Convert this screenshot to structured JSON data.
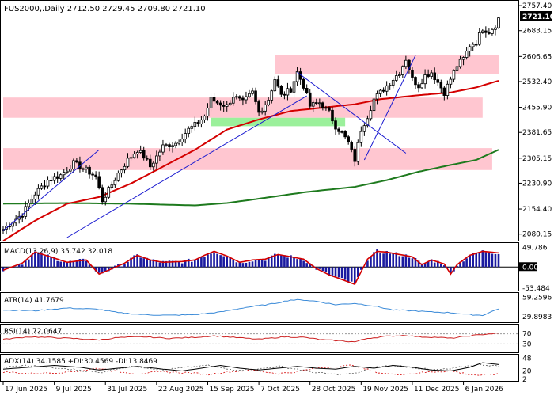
{
  "chart_data": {
    "type": "candlestick",
    "symbol": "FUS2000",
    "timeframe": "Daily",
    "ohlc_header": "FUS2000,.Daily  2712.50 2729.45 2709.80 2721.10",
    "last_price": "2721.10",
    "price_ticks": [
      "2757.40",
      "2683.15",
      "2606.65",
      "2532.40",
      "2455.90",
      "2381.65",
      "2305.15",
      "2230.90",
      "2154.40",
      "2080.15"
    ],
    "price_ylim": [
      2070,
      2760
    ],
    "x_labels": [
      "17 Jun 2025",
      "9 Jul 2025",
      "31 Jul 2025",
      "22 Aug 2025",
      "15 Sep 2025",
      "7 Oct 2025",
      "28 Oct 2025",
      "19 Nov 2025",
      "11 Dec 2025",
      "6 Jan 2026"
    ],
    "x_label_index": [
      0,
      16,
      32,
      48,
      64,
      80,
      96,
      112,
      128,
      144
    ],
    "candle_count": 156,
    "close_waypoints": [
      [
        0,
        2095
      ],
      [
        6,
        2140
      ],
      [
        10,
        2200
      ],
      [
        14,
        2240
      ],
      [
        18,
        2255
      ],
      [
        22,
        2290
      ],
      [
        26,
        2270
      ],
      [
        29,
        2250
      ],
      [
        31,
        2180
      ],
      [
        33,
        2210
      ],
      [
        36,
        2260
      ],
      [
        39,
        2300
      ],
      [
        42,
        2330
      ],
      [
        44,
        2310
      ],
      [
        46,
        2280
      ],
      [
        50,
        2340
      ],
      [
        54,
        2350
      ],
      [
        58,
        2390
      ],
      [
        61,
        2410
      ],
      [
        63,
        2430
      ],
      [
        65,
        2480
      ],
      [
        67,
        2470
      ],
      [
        70,
        2460
      ],
      [
        72,
        2490
      ],
      [
        75,
        2470
      ],
      [
        78,
        2500
      ],
      [
        80,
        2440
      ],
      [
        83,
        2480
      ],
      [
        85,
        2540
      ],
      [
        87,
        2490
      ],
      [
        90,
        2510
      ],
      [
        92,
        2560
      ],
      [
        94,
        2520
      ],
      [
        96,
        2460
      ],
      [
        99,
        2470
      ],
      [
        102,
        2440
      ],
      [
        104,
        2400
      ],
      [
        106,
        2380
      ],
      [
        108,
        2350
      ],
      [
        110,
        2300
      ],
      [
        112,
        2390
      ],
      [
        114,
        2430
      ],
      [
        116,
        2480
      ],
      [
        118,
        2500
      ],
      [
        120,
        2520
      ],
      [
        122,
        2540
      ],
      [
        124,
        2560
      ],
      [
        126,
        2600
      ],
      [
        128,
        2540
      ],
      [
        130,
        2520
      ],
      [
        132,
        2550
      ],
      [
        134,
        2560
      ],
      [
        136,
        2530
      ],
      [
        138,
        2500
      ],
      [
        140,
        2540
      ],
      [
        142,
        2580
      ],
      [
        144,
        2600
      ],
      [
        146,
        2640
      ],
      [
        148,
        2650
      ],
      [
        150,
        2690
      ],
      [
        152,
        2680
      ],
      [
        154,
        2700
      ],
      [
        155,
        2721.1
      ]
    ],
    "ma_red": [
      [
        0,
        2060
      ],
      [
        10,
        2120
      ],
      [
        20,
        2170
      ],
      [
        30,
        2190
      ],
      [
        40,
        2230
      ],
      [
        50,
        2280
      ],
      [
        60,
        2330
      ],
      [
        70,
        2390
      ],
      [
        80,
        2420
      ],
      [
        90,
        2445
      ],
      [
        100,
        2455
      ],
      [
        110,
        2465
      ],
      [
        118,
        2480
      ],
      [
        130,
        2492
      ],
      [
        140,
        2500
      ],
      [
        148,
        2515
      ],
      [
        155,
        2535
      ]
    ],
    "ma_green": [
      [
        0,
        2170
      ],
      [
        20,
        2172
      ],
      [
        40,
        2170
      ],
      [
        60,
        2165
      ],
      [
        70,
        2172
      ],
      [
        80,
        2185
      ],
      [
        95,
        2205
      ],
      [
        110,
        2220
      ],
      [
        120,
        2240
      ],
      [
        130,
        2265
      ],
      [
        140,
        2285
      ],
      [
        148,
        2300
      ],
      [
        155,
        2330
      ]
    ],
    "support_resistance_zones": [
      {
        "from": 2555,
        "to": 2610,
        "x_from": 85,
        "x_to": 155,
        "color": "#ffc0cb"
      },
      {
        "from": 2425,
        "to": 2485,
        "x_from": 0,
        "x_to": 150,
        "color": "#ffc0cb"
      },
      {
        "from": 2400,
        "to": 2425,
        "x_from": 65,
        "x_to": 107,
        "color": "#90ee90"
      },
      {
        "from": 2270,
        "to": 2335,
        "x_from": 0,
        "x_to": 153,
        "color": "#ffc0cb"
      }
    ],
    "trendlines": [
      {
        "points": [
          [
            0,
            2090
          ],
          [
            30,
            2330
          ]
        ],
        "color": "#1a1ad0"
      },
      {
        "points": [
          [
            20,
            2070
          ],
          [
            95,
            2490
          ]
        ],
        "color": "#1a1ad0"
      },
      {
        "points": [
          [
            92,
            2560
          ],
          [
            126,
            2320
          ]
        ],
        "color": "#1a1ad0"
      },
      {
        "points": [
          [
            113,
            2300
          ],
          [
            129,
            2610
          ]
        ],
        "color": "#1a1ad0"
      }
    ],
    "macd": {
      "label": "MACD(13,26,9) 35.742 32.018",
      "ticks": [
        "49.786",
        "0.00",
        "-53.484"
      ],
      "ylim": [
        -58,
        55
      ],
      "waypoints": [
        [
          0,
          -8
        ],
        [
          6,
          10
        ],
        [
          10,
          38
        ],
        [
          14,
          28
        ],
        [
          20,
          12
        ],
        [
          26,
          18
        ],
        [
          30,
          -18
        ],
        [
          33,
          -8
        ],
        [
          38,
          10
        ],
        [
          42,
          30
        ],
        [
          46,
          18
        ],
        [
          50,
          12
        ],
        [
          56,
          14
        ],
        [
          60,
          18
        ],
        [
          63,
          30
        ],
        [
          66,
          40
        ],
        [
          70,
          28
        ],
        [
          74,
          12
        ],
        [
          78,
          18
        ],
        [
          82,
          20
        ],
        [
          86,
          32
        ],
        [
          90,
          26
        ],
        [
          94,
          20
        ],
        [
          98,
          -4
        ],
        [
          102,
          -20
        ],
        [
          106,
          -32
        ],
        [
          110,
          -44
        ],
        [
          112,
          -12
        ],
        [
          114,
          20
        ],
        [
          117,
          40
        ],
        [
          120,
          38
        ],
        [
          124,
          32
        ],
        [
          128,
          26
        ],
        [
          131,
          6
        ],
        [
          134,
          18
        ],
        [
          138,
          8
        ],
        [
          140,
          -18
        ],
        [
          142,
          6
        ],
        [
          146,
          30
        ],
        [
          150,
          40
        ],
        [
          155,
          36
        ]
      ]
    },
    "atr": {
      "label": "ATR(14) 41.7679",
      "ticks": [
        "59.2596",
        "29.8983"
      ],
      "ylim": [
        24,
        62
      ],
      "waypoints": [
        [
          0,
          40
        ],
        [
          10,
          39
        ],
        [
          20,
          43
        ],
        [
          30,
          41
        ],
        [
          36,
          36
        ],
        [
          44,
          33
        ],
        [
          52,
          32
        ],
        [
          60,
          33
        ],
        [
          68,
          37
        ],
        [
          76,
          44
        ],
        [
          84,
          49
        ],
        [
          90,
          55
        ],
        [
          94,
          55
        ],
        [
          98,
          53
        ],
        [
          104,
          48
        ],
        [
          110,
          50
        ],
        [
          116,
          46
        ],
        [
          122,
          40
        ],
        [
          128,
          39
        ],
        [
          134,
          37
        ],
        [
          140,
          36
        ],
        [
          146,
          33
        ],
        [
          150,
          32
        ],
        [
          155,
          42
        ]
      ]
    },
    "rsi": {
      "label": "RSI(14) 72.0647",
      "ticks": [
        "70",
        "30"
      ],
      "ylim": [
        0,
        100
      ],
      "waypoints": [
        [
          0,
          48
        ],
        [
          8,
          58
        ],
        [
          16,
          55
        ],
        [
          24,
          50
        ],
        [
          30,
          46
        ],
        [
          36,
          55
        ],
        [
          44,
          58
        ],
        [
          52,
          52
        ],
        [
          60,
          56
        ],
        [
          66,
          62
        ],
        [
          74,
          54
        ],
        [
          80,
          48
        ],
        [
          88,
          58
        ],
        [
          94,
          56
        ],
        [
          100,
          46
        ],
        [
          106,
          42
        ],
        [
          110,
          38
        ],
        [
          114,
          52
        ],
        [
          120,
          60
        ],
        [
          126,
          64
        ],
        [
          130,
          58
        ],
        [
          136,
          56
        ],
        [
          140,
          52
        ],
        [
          146,
          62
        ],
        [
          152,
          70
        ],
        [
          155,
          72
        ]
      ]
    },
    "adx": {
      "label": "ADX(14) 34.1585 +DI:30.4569 -DI:13.8469",
      "ticks": [
        "48",
        "20",
        "2"
      ],
      "ylim": [
        0,
        52
      ],
      "adx_waypoints": [
        [
          0,
          24
        ],
        [
          8,
          28
        ],
        [
          16,
          32
        ],
        [
          24,
          28
        ],
        [
          30,
          22
        ],
        [
          36,
          26
        ],
        [
          42,
          30
        ],
        [
          50,
          24
        ],
        [
          56,
          20
        ],
        [
          62,
          26
        ],
        [
          68,
          32
        ],
        [
          74,
          26
        ],
        [
          80,
          22
        ],
        [
          86,
          26
        ],
        [
          92,
          30
        ],
        [
          98,
          26
        ],
        [
          104,
          24
        ],
        [
          110,
          30
        ],
        [
          116,
          26
        ],
        [
          122,
          32
        ],
        [
          128,
          28
        ],
        [
          134,
          22
        ],
        [
          140,
          20
        ],
        [
          146,
          28
        ],
        [
          150,
          38
        ],
        [
          155,
          34
        ]
      ],
      "plus_di_waypoints": [
        [
          0,
          28
        ],
        [
          8,
          32
        ],
        [
          16,
          26
        ],
        [
          24,
          22
        ],
        [
          30,
          16
        ],
        [
          36,
          26
        ],
        [
          42,
          30
        ],
        [
          50,
          22
        ],
        [
          58,
          28
        ],
        [
          64,
          32
        ],
        [
          70,
          24
        ],
        [
          78,
          22
        ],
        [
          86,
          30
        ],
        [
          92,
          24
        ],
        [
          98,
          16
        ],
        [
          104,
          12
        ],
        [
          110,
          14
        ],
        [
          116,
          28
        ],
        [
          122,
          32
        ],
        [
          128,
          28
        ],
        [
          134,
          22
        ],
        [
          140,
          24
        ],
        [
          146,
          32
        ],
        [
          150,
          34
        ],
        [
          155,
          30
        ]
      ],
      "minus_di_waypoints": [
        [
          0,
          18
        ],
        [
          8,
          14
        ],
        [
          16,
          16
        ],
        [
          24,
          20
        ],
        [
          30,
          26
        ],
        [
          36,
          18
        ],
        [
          42,
          14
        ],
        [
          50,
          18
        ],
        [
          58,
          16
        ],
        [
          64,
          12
        ],
        [
          70,
          18
        ],
        [
          78,
          22
        ],
        [
          86,
          14
        ],
        [
          92,
          18
        ],
        [
          98,
          26
        ],
        [
          104,
          30
        ],
        [
          110,
          32
        ],
        [
          116,
          18
        ],
        [
          122,
          12
        ],
        [
          128,
          14
        ],
        [
          134,
          18
        ],
        [
          140,
          20
        ],
        [
          146,
          12
        ],
        [
          150,
          10
        ],
        [
          155,
          14
        ]
      ]
    },
    "colors": {
      "up_candle": "#000000",
      "down_candle": "#000000",
      "ma_red": "#d40000",
      "ma_green": "#1e7a1e",
      "macd_hist": "#1a1aa0",
      "macd_signal": "#d40000",
      "atr": "#3a8ad8",
      "rsi": "#cc2020",
      "adx": "#000000",
      "plus_di": "#555555",
      "minus_di": "#d40000",
      "trendline": "#1a1ad0"
    }
  }
}
